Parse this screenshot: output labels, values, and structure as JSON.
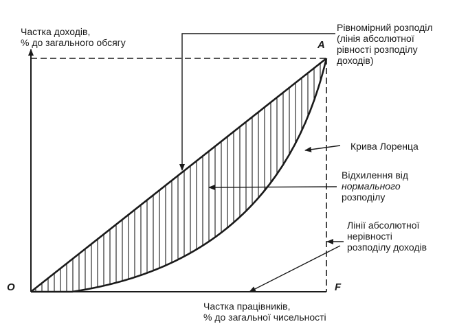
{
  "axes": {
    "y_label": [
      "Частка доходів,",
      "% до загального обсягу"
    ],
    "x_label": [
      "Частка працівників,",
      "% до загальної чисельності"
    ]
  },
  "points": {
    "origin": "O",
    "top_right": "A",
    "bottom_right": "F"
  },
  "annotations": {
    "uniform": [
      "Рівномірний розподіл",
      "(лінія абсолютної",
      "рівності розподілу",
      "доходів)"
    ],
    "lorenz": "Крива Лоренца",
    "deviation": {
      "line1": "Відхилення від",
      "line2": "нормального",
      "line3": "розподілу"
    },
    "inequality": [
      "Лінії абсолютної",
      "нерівності",
      "розподілу доходів"
    ]
  },
  "colors": {
    "ink": "#1a1a1a",
    "background": "#ffffff"
  }
}
